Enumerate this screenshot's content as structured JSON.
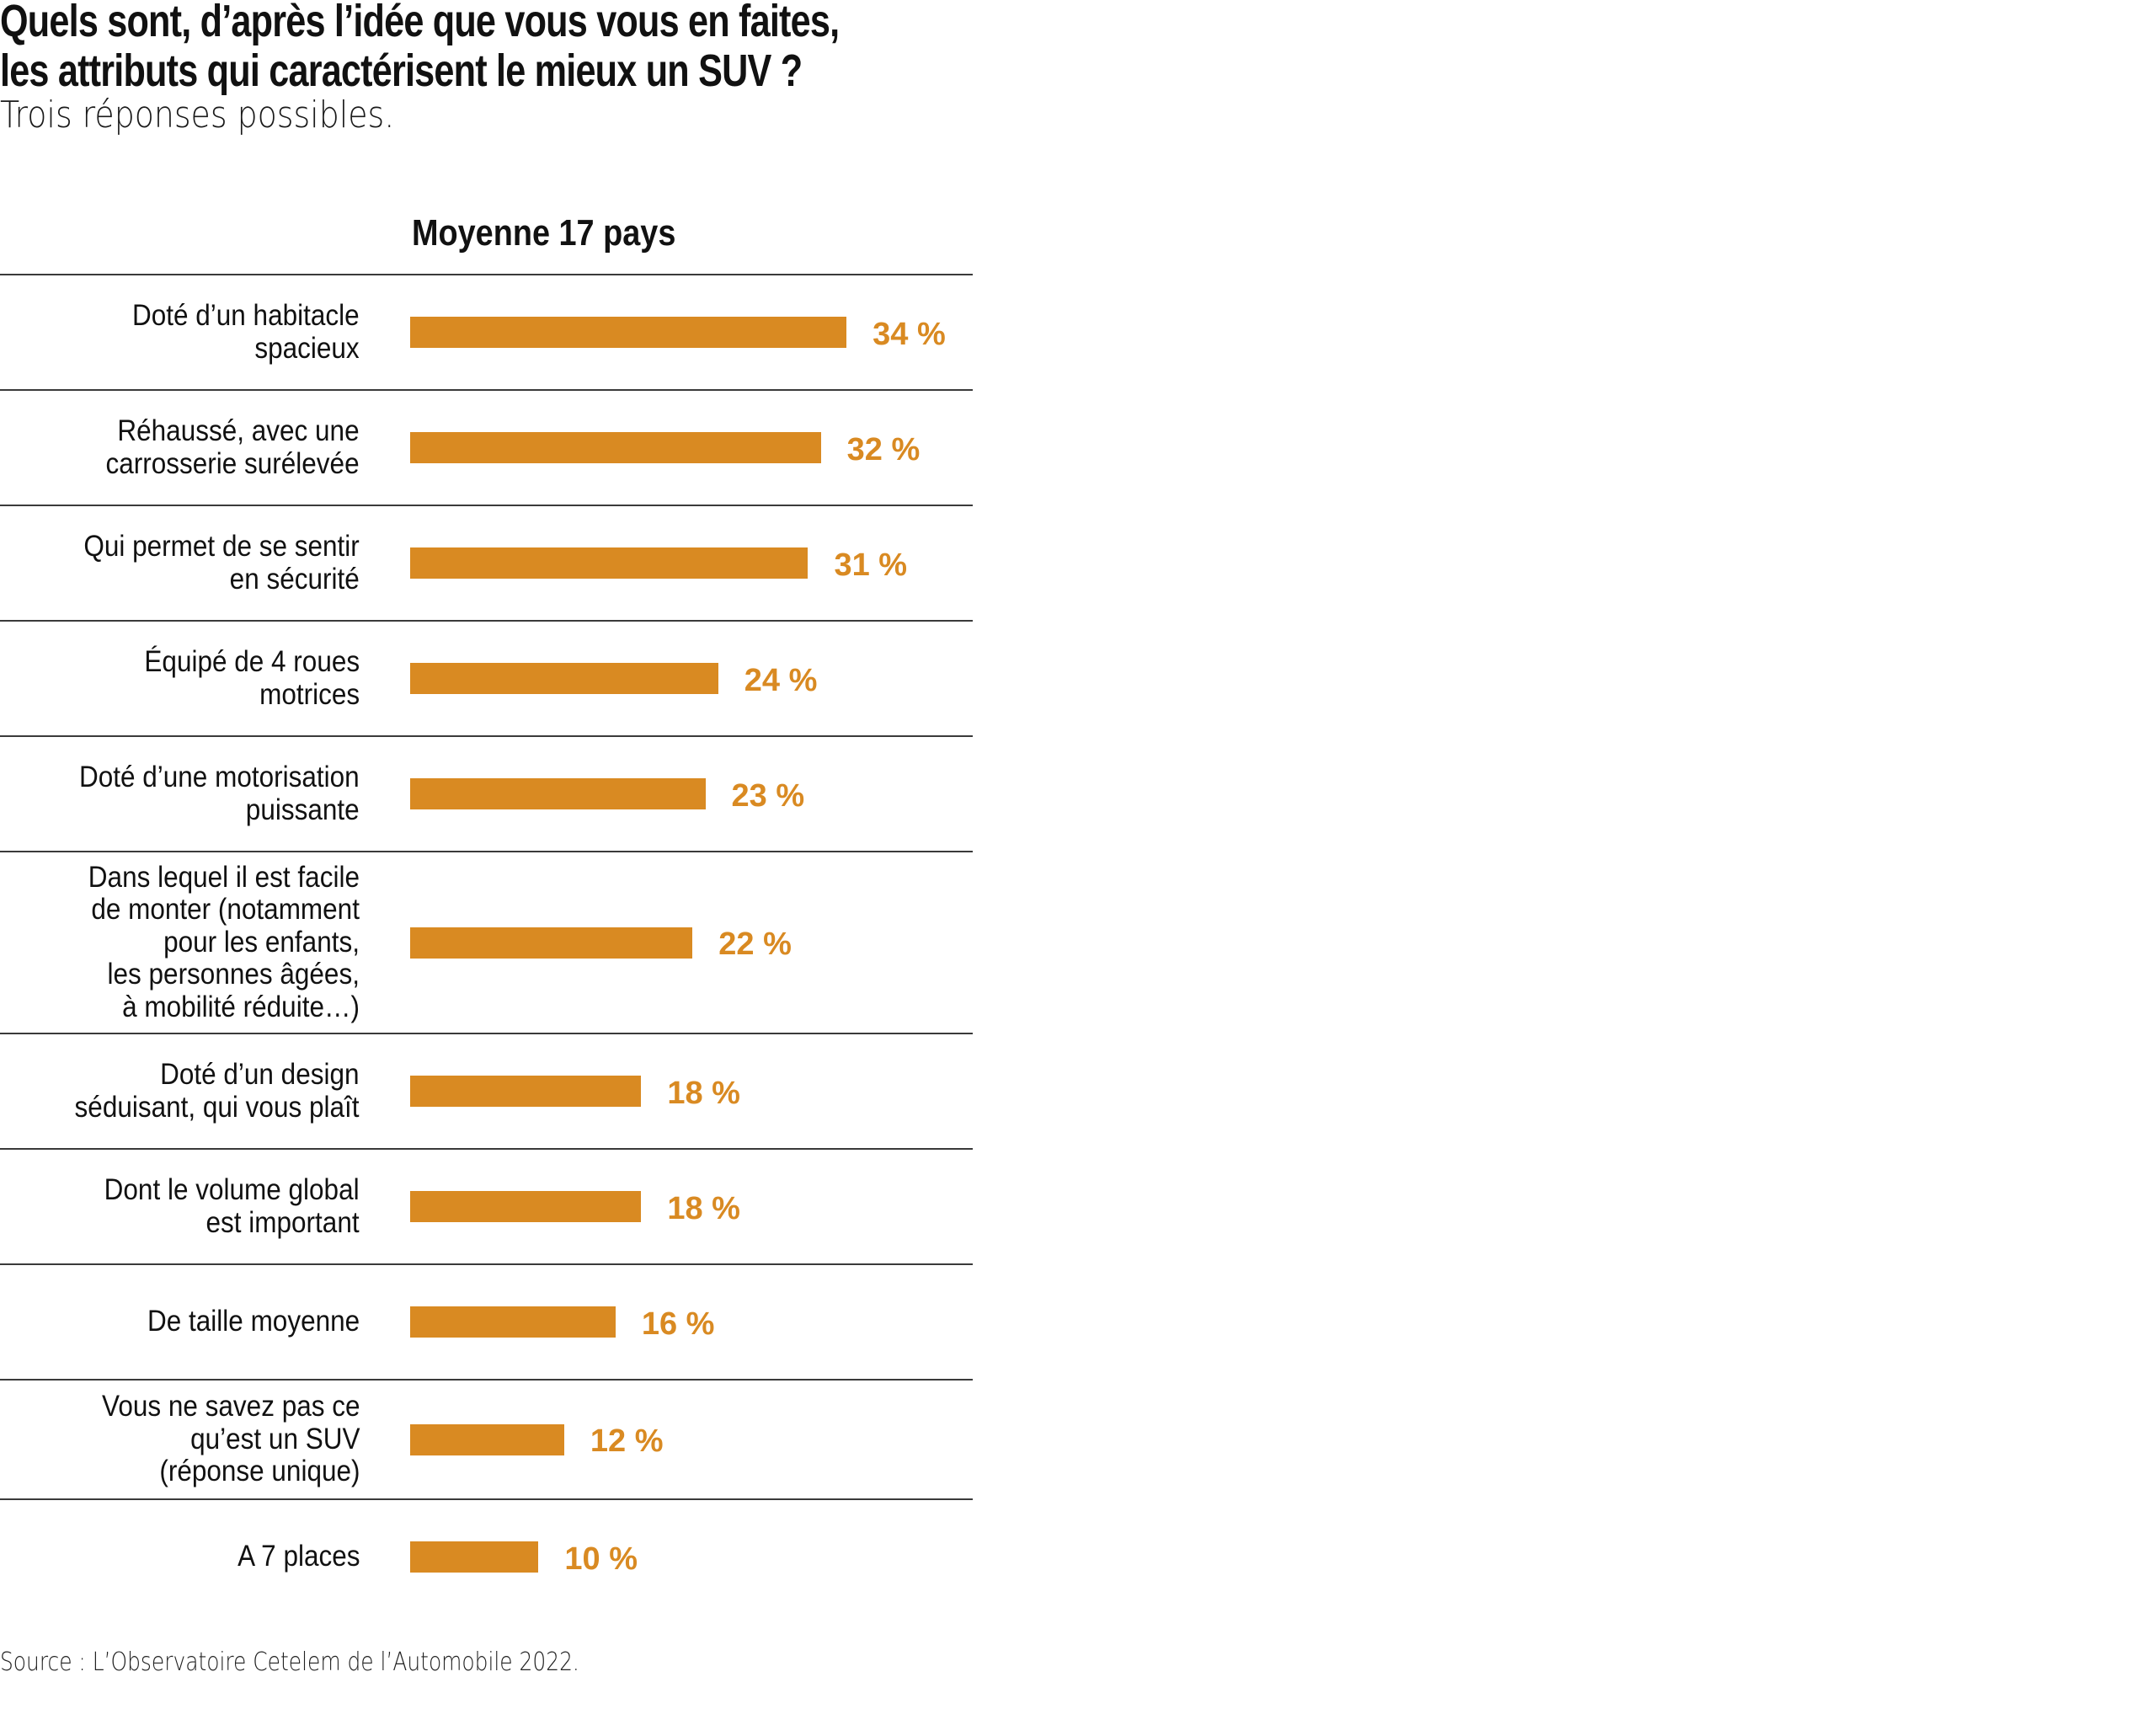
{
  "header": {
    "title_line1": "Quels sont, d’après l’idée que vous vous en faites,",
    "title_line2": "les attributs qui caractérisent le mieux un SUV ?",
    "subtitle": "Trois réponses possibles."
  },
  "colors": {
    "bar": "#D98A22",
    "value_text": "#D98A22",
    "separator": "#3a3a3a",
    "text": "#111111"
  },
  "chart_data": {
    "type": "bar",
    "orientation": "horizontal",
    "title": "Quels sont, d’après l’idée que vous vous en faites, les attributs qui caractérisent le mieux un SUV ?",
    "subtitle": "Trois réponses possibles.",
    "column_header": "Moyenne 17 pays",
    "xlabel": "",
    "ylabel": "",
    "unit": "%",
    "xlim": [
      0,
      34
    ],
    "grid": false,
    "legend": "none",
    "categories": [
      "Doté d’un habitacle\nspacieux",
      "Réhaussé, avec une\ncarrosserie surélevée",
      "Qui permet de se sentir\nen sécurité",
      "Équipé de 4 roues\nmotrices",
      "Doté d’une motorisation\npuissante",
      "Dans lequel il est facile\nde monter (notamment\npour les enfants,\nles personnes âgées,\nà mobilité réduite…)",
      "Doté d’un design\nséduisant, qui vous plaît",
      "Dont le volume global\nest important",
      "De taille moyenne",
      "Vous ne savez pas ce\nqu’est un SUV\n(réponse unique)",
      "A 7 places"
    ],
    "values": [
      34,
      32,
      31,
      24,
      23,
      22,
      18,
      18,
      16,
      12,
      10
    ],
    "value_labels": [
      "34 %",
      "32 %",
      "31 %",
      "24 %",
      "23 %",
      "22 %",
      "18 %",
      "18 %",
      "16 %",
      "12 %",
      "10 %"
    ]
  },
  "footer": {
    "source": "Source : L’Observatoire Cetelem de l’Automobile 2022."
  }
}
